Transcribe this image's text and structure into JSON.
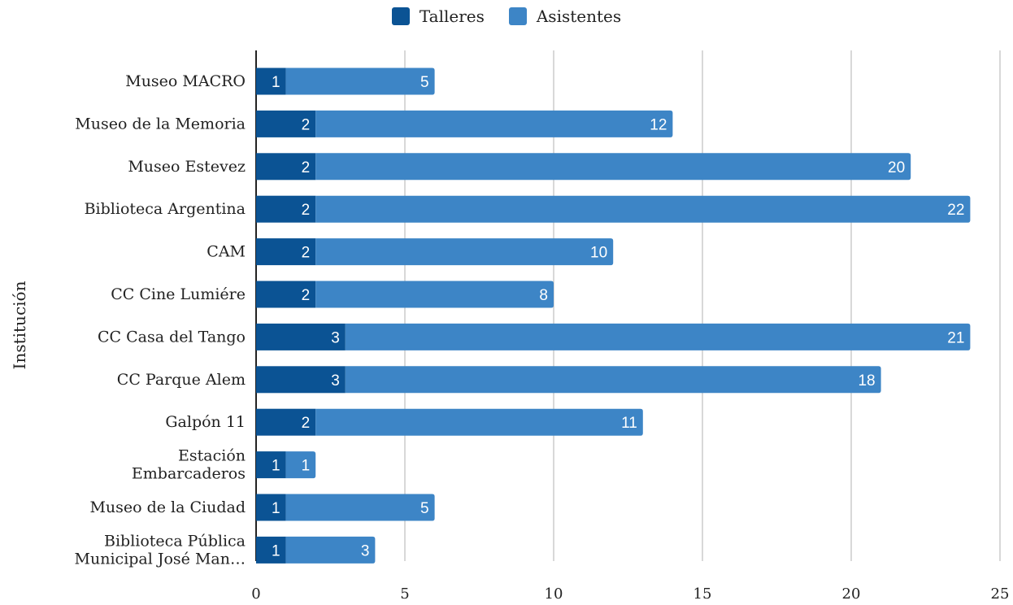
{
  "chart_data": {
    "type": "bar",
    "orientation": "horizontal",
    "stacked": true,
    "title": "",
    "xlabel": "",
    "ylabel": "Institución",
    "xlim": [
      0,
      25
    ],
    "xticks": [
      "0",
      "5",
      "10",
      "15",
      "20",
      "25"
    ],
    "grid": true,
    "legend_position": "top",
    "categories": [
      [
        "Museo MACRO"
      ],
      [
        "Museo de la Memoria"
      ],
      [
        "Museo Estevez"
      ],
      [
        "Biblioteca Argentina"
      ],
      [
        "CAM"
      ],
      [
        "CC Cine Lumiére"
      ],
      [
        "CC Casa del Tango"
      ],
      [
        "CC Parque Alem"
      ],
      [
        "Galpón 11"
      ],
      [
        "Estación",
        "Embarcaderos"
      ],
      [
        "Museo de la Ciudad"
      ],
      [
        "Biblioteca Pública",
        "Municipal José Man…"
      ]
    ],
    "series": [
      {
        "name": "Talleres",
        "color": "#0b5394",
        "values": [
          1,
          2,
          2,
          2,
          2,
          2,
          3,
          3,
          2,
          1,
          1,
          1
        ]
      },
      {
        "name": "Asistentes",
        "color": "#3d85c6",
        "values": [
          5,
          12,
          20,
          22,
          10,
          8,
          21,
          18,
          11,
          1,
          5,
          3
        ]
      }
    ]
  }
}
